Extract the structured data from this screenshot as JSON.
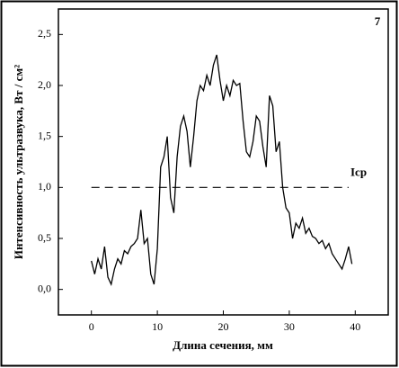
{
  "chart_data": {
    "type": "line",
    "annotation": "7",
    "x_label": "Длина сечения, мм",
    "y_label": "Интенсивность ультразвука, Вт / см²",
    "reference_line": {
      "value": 1.0,
      "label": "Iср"
    },
    "xlim": [
      -5,
      45
    ],
    "xticks": [
      0,
      10,
      20,
      30,
      40
    ],
    "ylim": [
      -0.25,
      2.75
    ],
    "yticks": [
      {
        "value": 0,
        "label": "0,0"
      },
      {
        "value": 0.5,
        "label": "0,5"
      },
      {
        "value": 1,
        "label": "1,0"
      },
      {
        "value": 1.5,
        "label": "1,5"
      },
      {
        "value": 2,
        "label": "2,0"
      },
      {
        "value": 2.5,
        "label": "2,5"
      }
    ],
    "color": "#000000",
    "x": [
      0,
      0.5,
      1,
      1.5,
      2,
      2.5,
      3,
      3.5,
      4,
      4.5,
      5,
      5.5,
      6,
      6.5,
      7,
      7.5,
      8,
      8.5,
      9,
      9.5,
      10,
      10.5,
      11,
      11.5,
      12,
      12.5,
      13,
      13.5,
      14,
      14.5,
      15,
      15.5,
      16,
      16.5,
      17,
      17.5,
      18,
      18.5,
      19,
      19.5,
      20,
      20.5,
      21,
      21.5,
      22,
      22.5,
      23,
      23.5,
      24,
      24.5,
      25,
      25.5,
      26,
      26.5,
      27,
      27.5,
      28,
      28.5,
      29,
      29.5,
      30,
      30.5,
      31,
      31.5,
      32,
      32.5,
      33,
      33.5,
      34,
      34.5,
      35,
      35.5,
      36,
      36.5,
      37,
      37.5,
      38,
      38.5,
      39,
      39.5
    ],
    "values": [
      0.28,
      0.15,
      0.3,
      0.2,
      0.42,
      0.12,
      0.05,
      0.2,
      0.3,
      0.25,
      0.38,
      0.35,
      0.42,
      0.45,
      0.5,
      0.78,
      0.45,
      0.5,
      0.15,
      0.05,
      0.4,
      1.2,
      1.3,
      1.5,
      0.9,
      0.75,
      1.3,
      1.6,
      1.7,
      1.55,
      1.2,
      1.5,
      1.85,
      2.0,
      1.95,
      2.1,
      2.0,
      2.2,
      2.3,
      2.05,
      1.85,
      2.0,
      1.9,
      2.05,
      2.0,
      2.02,
      1.65,
      1.35,
      1.3,
      1.45,
      1.7,
      1.65,
      1.4,
      1.2,
      1.9,
      1.8,
      1.35,
      1.45,
      1.0,
      0.8,
      0.75,
      0.5,
      0.65,
      0.6,
      0.7,
      0.55,
      0.6,
      0.52,
      0.5,
      0.45,
      0.48,
      0.4,
      0.45,
      0.35,
      0.3,
      0.25,
      0.2,
      0.3,
      0.42,
      0.25
    ]
  }
}
